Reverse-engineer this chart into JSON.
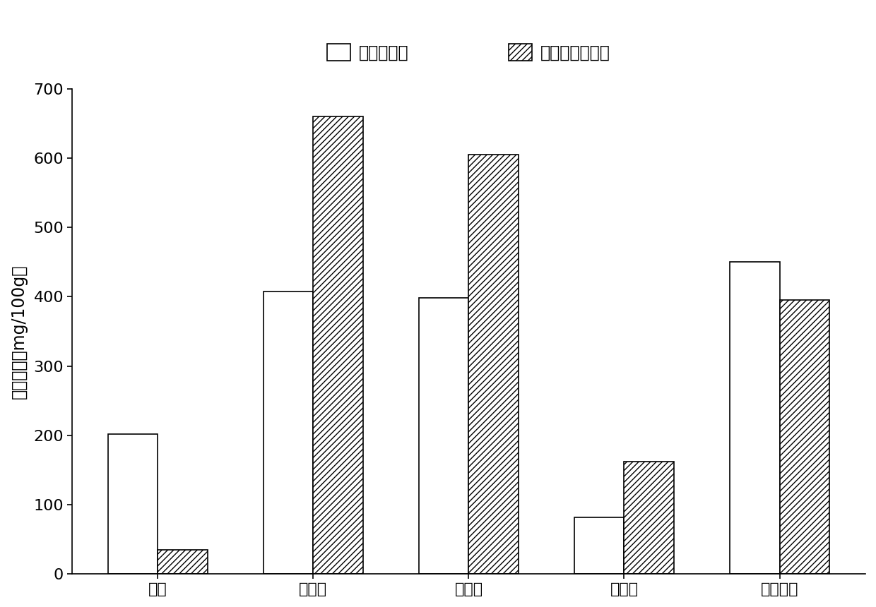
{
  "categories": [
    "芦丁",
    "杨梅酮",
    "榲皮素",
    "山奈酚",
    "异鼠李素"
  ],
  "control_values": [
    202,
    407,
    398,
    82,
    450
  ],
  "hydrolysis_values": [
    35,
    660,
    605,
    162,
    395
  ],
  "ylabel": "黄酮含量（mg/100g）",
  "ylim": [
    0,
    700
  ],
  "yticks": [
    0,
    100,
    200,
    300,
    400,
    500,
    600,
    700
  ],
  "legend_control": "对照组蜂胶",
  "legend_hydrolysis": "柚苷酶水解蜂胶",
  "bar_width": 0.32,
  "control_color": "#ffffff",
  "edge_color": "#000000",
  "background_color": "#ffffff",
  "fontsize_axis": 17,
  "fontsize_legend": 17,
  "fontsize_tick": 16,
  "hatch_pattern": "////"
}
